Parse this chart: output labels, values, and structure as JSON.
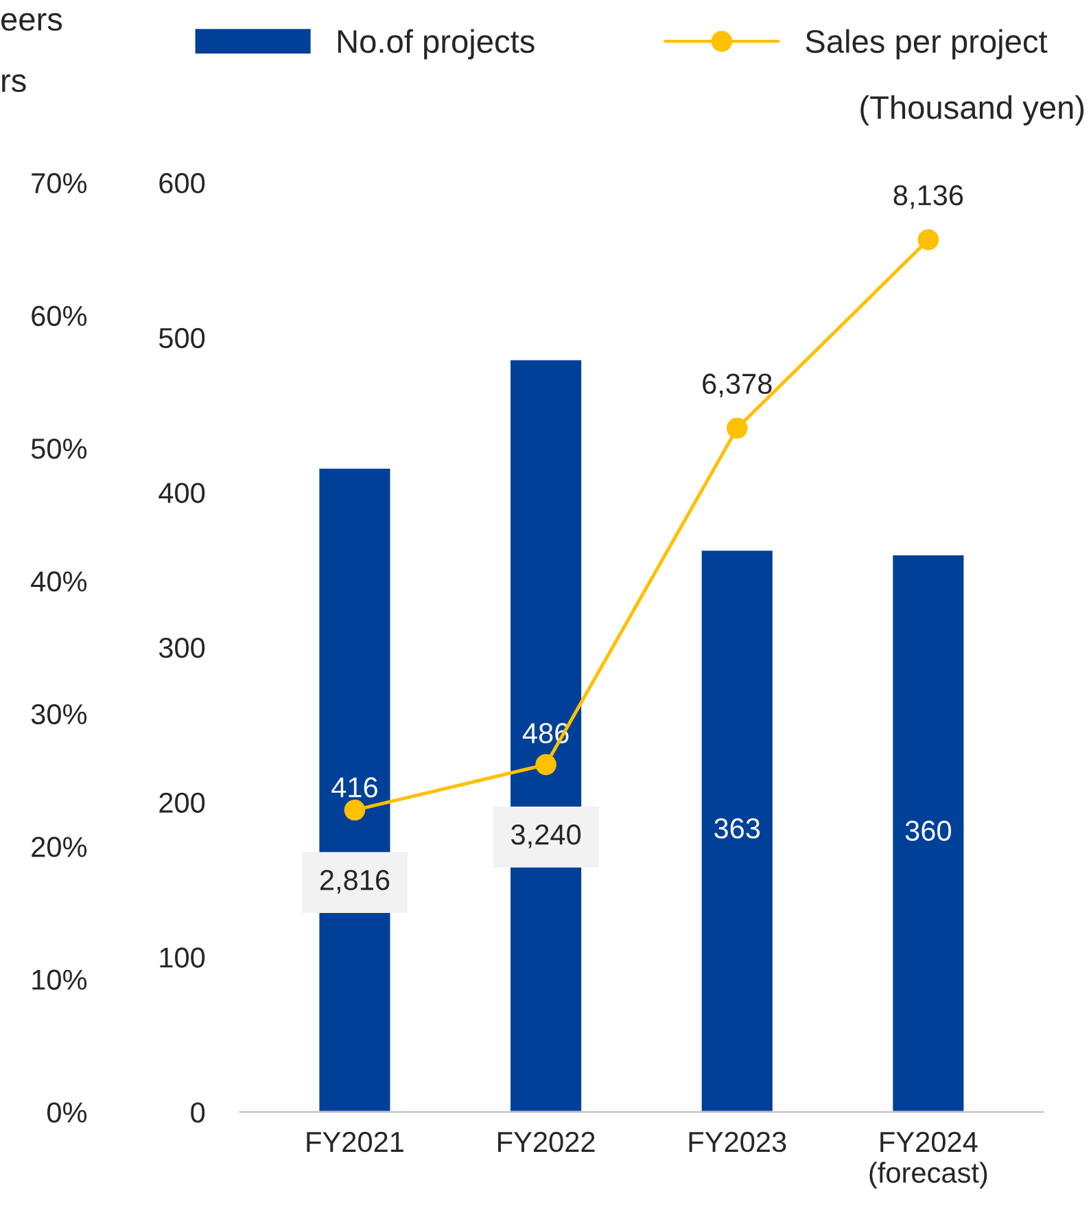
{
  "chart_data": {
    "type": "bar",
    "categories": [
      "FY2021",
      "FY2022",
      "FY2023",
      "FY2024\n(forecast)"
    ],
    "series": [
      {
        "name": "No.of projects",
        "color": "#004098",
        "values": [
          416,
          486,
          363,
          360
        ]
      },
      {
        "name": "Sales per project",
        "type": "line",
        "axis": "y2",
        "color": "#ffc000",
        "values": [
          2816,
          3240,
          6378,
          8136
        ],
        "value_labels": [
          "2,816",
          "3,240",
          "6,378",
          "8,136"
        ]
      }
    ],
    "ylim": [
      0,
      600
    ],
    "yticks": [
      0,
      100,
      200,
      300,
      400,
      500,
      600
    ],
    "y3lim": [
      0,
      70
    ],
    "y3ticks": [
      {
        "value": 0,
        "label": "0%"
      },
      {
        "value": 10,
        "label": "10%"
      },
      {
        "value": 20,
        "label": "20%"
      },
      {
        "value": 30,
        "label": "30%"
      },
      {
        "value": 40,
        "label": "40%"
      },
      {
        "value": 50,
        "label": "50%"
      },
      {
        "value": 60,
        "label": "60%"
      },
      {
        "value": 70,
        "label": "70%"
      }
    ],
    "annotations": [
      "(Thousand yen)",
      "eers",
      "rs"
    ],
    "data_labels": true,
    "marker": "circle",
    "legend": "top",
    "grid": false
  }
}
